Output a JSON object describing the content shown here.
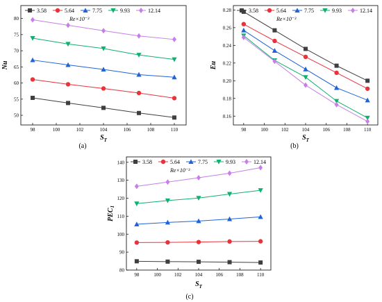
{
  "chart_data": [
    {
      "id": "a",
      "type": "line",
      "panel_label": "(a)",
      "ylabel": "Nu",
      "ylabel_sub": "",
      "xlabel": "S",
      "xlabel_sub": "T",
      "re_label": "Re×10⁻³",
      "xlim": [
        97,
        111
      ],
      "ylim": [
        47,
        84
      ],
      "xticks": [
        98,
        100,
        102,
        104,
        106,
        108,
        110
      ],
      "yticks": [
        50,
        55,
        60,
        65,
        70,
        75,
        80
      ],
      "x": [
        98,
        101,
        104,
        107,
        110
      ],
      "series": [
        {
          "name": "3.58",
          "marker": "square",
          "color": "#3f3f3f",
          "values": [
            55.4,
            53.8,
            52.3,
            50.7,
            49.3
          ]
        },
        {
          "name": "5.64",
          "marker": "circle",
          "color": "#e8333b",
          "values": [
            61.1,
            59.6,
            58.3,
            56.9,
            55.3
          ]
        },
        {
          "name": "7.75",
          "marker": "triangle-up",
          "color": "#1f63d6",
          "values": [
            67.1,
            65.6,
            64.2,
            62.6,
            61.8
          ]
        },
        {
          "name": "9.93",
          "marker": "triangle-down",
          "color": "#10b070",
          "values": [
            73.9,
            72.1,
            70.7,
            68.7,
            67.3
          ]
        },
        {
          "name": "12.14",
          "marker": "diamond",
          "color": "#c77ee8",
          "values": [
            79.6,
            77.9,
            76.2,
            74.6,
            73.5
          ]
        }
      ]
    },
    {
      "id": "b",
      "type": "line",
      "panel_label": "(b)",
      "ylabel": "Eu",
      "ylabel_sub": "",
      "xlabel": "S",
      "xlabel_sub": "T",
      "re_label": "Re×10⁻³",
      "xlim": [
        97,
        111
      ],
      "ylim": [
        0.15,
        0.285
      ],
      "xticks": [
        98,
        100,
        102,
        104,
        106,
        108,
        110
      ],
      "yticks": [
        0.16,
        0.18,
        0.2,
        0.22,
        0.24,
        0.26,
        0.28
      ],
      "ytick_decimals": 2,
      "x": [
        98,
        101,
        104,
        107,
        110
      ],
      "series": [
        {
          "name": "3.58",
          "marker": "square",
          "color": "#3f3f3f",
          "values": [
            0.278,
            0.257,
            0.236,
            0.217,
            0.2
          ]
        },
        {
          "name": "5.64",
          "marker": "circle",
          "color": "#e8333b",
          "values": [
            0.264,
            0.245,
            0.227,
            0.209,
            0.191
          ]
        },
        {
          "name": "7.75",
          "marker": "triangle-up",
          "color": "#1f63d6",
          "values": [
            0.257,
            0.234,
            0.213,
            0.192,
            0.178
          ]
        },
        {
          "name": "9.93",
          "marker": "triangle-down",
          "color": "#10b070",
          "values": [
            0.251,
            0.223,
            0.204,
            0.177,
            0.158
          ]
        },
        {
          "name": "12.14",
          "marker": "diamond",
          "color": "#c77ee8",
          "values": [
            0.249,
            0.222,
            0.195,
            0.173,
            0.154
          ]
        }
      ]
    },
    {
      "id": "c",
      "type": "line",
      "panel_label": "(c)",
      "ylabel": "PEC",
      "ylabel_sub": "1",
      "xlabel": "S",
      "xlabel_sub": "T",
      "re_label": "Re×10⁻³",
      "xlim": [
        97,
        111
      ],
      "ylim": [
        80,
        143
      ],
      "xticks": [
        98,
        100,
        102,
        104,
        106,
        108,
        110
      ],
      "yticks": [
        80,
        90,
        100,
        110,
        120,
        130,
        140
      ],
      "x": [
        98,
        101,
        104,
        107,
        110
      ],
      "series": [
        {
          "name": "3.58",
          "marker": "square",
          "color": "#3f3f3f",
          "values": [
            84.9,
            84.7,
            84.6,
            84.4,
            84.2
          ]
        },
        {
          "name": "5.64",
          "marker": "circle",
          "color": "#e8333b",
          "values": [
            95.3,
            95.4,
            95.6,
            95.9,
            96.0
          ]
        },
        {
          "name": "7.75",
          "marker": "triangle-up",
          "color": "#1f63d6",
          "values": [
            105.5,
            106.5,
            107.3,
            108.4,
            109.6
          ]
        },
        {
          "name": "9.93",
          "marker": "triangle-down",
          "color": "#10b070",
          "values": [
            117.0,
            118.7,
            120.1,
            122.3,
            124.4
          ]
        },
        {
          "name": "12.14",
          "marker": "diamond",
          "color": "#c77ee8",
          "values": [
            126.6,
            129.0,
            131.4,
            133.9,
            137.0
          ]
        }
      ]
    }
  ]
}
